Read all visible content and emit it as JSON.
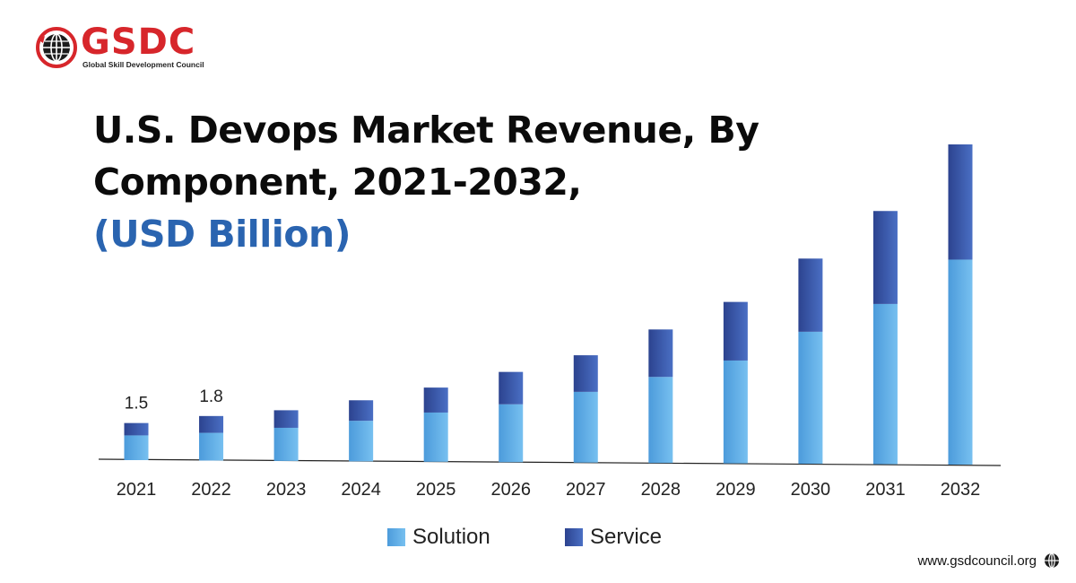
{
  "logo": {
    "brand": "GSDC",
    "tagline": "Global Skill Development Council"
  },
  "title": {
    "line1": "U.S. Devops Market Revenue, By",
    "line2": "Component, 2021-2032,",
    "unit": "(USD Billion)"
  },
  "colors": {
    "solution": "#5aaae3",
    "service": "#3350a8",
    "brand_red": "#d7262b",
    "unit_blue": "#2a64b0"
  },
  "chart_data": {
    "type": "bar",
    "stacked": true,
    "title": "U.S. Devops Market Revenue, By Component, 2021-2032, (USD Billion)",
    "xlabel": "",
    "ylabel": "USD Billion",
    "categories": [
      "2021",
      "2022",
      "2023",
      "2024",
      "2025",
      "2026",
      "2027",
      "2028",
      "2029",
      "2030",
      "2031",
      "2032"
    ],
    "series": [
      {
        "name": "Solution",
        "values": [
          1.0,
          1.12,
          1.34,
          1.64,
          1.99,
          2.34,
          2.86,
          3.48,
          4.16,
          5.34,
          6.48,
          8.29
        ]
      },
      {
        "name": "Service",
        "values": [
          0.5,
          0.68,
          0.71,
          0.83,
          1.01,
          1.31,
          1.48,
          1.92,
          2.37,
          2.96,
          3.76,
          4.66
        ]
      }
    ],
    "data_labels": [
      {
        "category": "2021",
        "text": "1.5"
      },
      {
        "category": "2022",
        "text": "1.8"
      }
    ],
    "ylim": [
      0,
      13
    ],
    "grid": false,
    "legend": "bottom"
  },
  "legend": {
    "items": [
      {
        "label": "Solution"
      },
      {
        "label": "Service"
      }
    ]
  },
  "footer": {
    "website": "www.gsdcouncil.org"
  }
}
